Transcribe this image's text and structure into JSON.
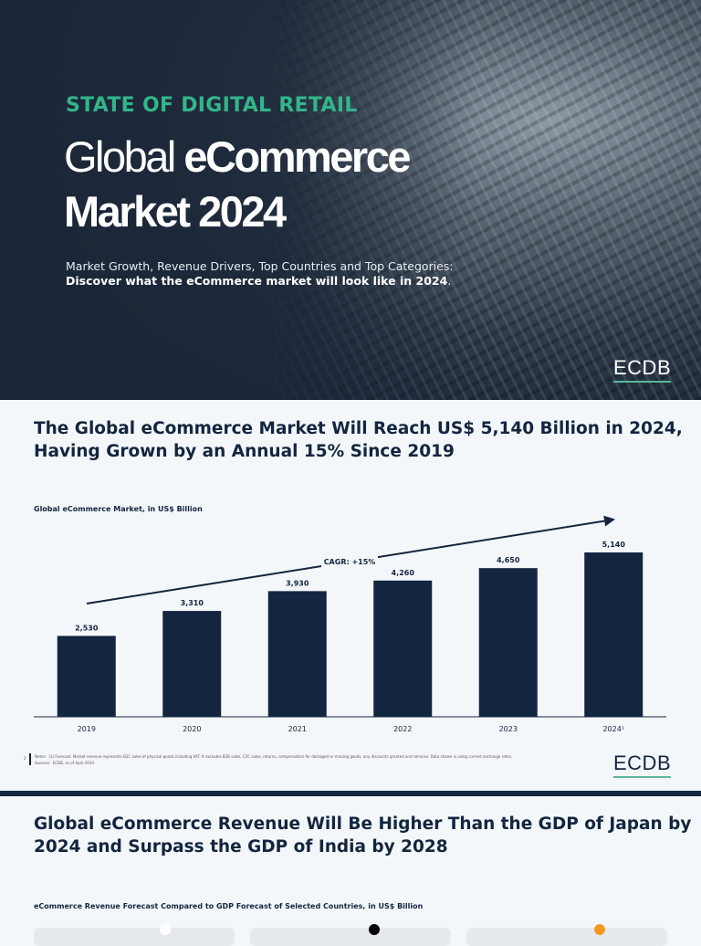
{
  "cover": {
    "kicker": "STATE OF DIGITAL RETAIL",
    "title_light": "Global ",
    "title_bold1": "eCommerce",
    "title_bold2": "Market 2024",
    "subtitle_line1": "Market Growth, Revenue Drivers, Top Countries and Top Categories:",
    "subtitle_line2": "Discover what the eCommerce market will look like in 2024",
    "subtitle_end": ".",
    "logo": "ECDB"
  },
  "page2": {
    "heading_line1": "The Global eCommerce Market Will Reach US$ 5,140 Billion in 2024,",
    "heading_line2": "Having Grown by an Annual 15% Since 2019",
    "page_number": "2",
    "notes_label": "Notes:",
    "notes_text": "(1) Forecast. Market revenue represents B2C sales of physical goods including VAT. It excludes B2B sales, C2C sales, returns, compensation for damaged or missing goods, any discounts granted and services. Data shown is using current exchange rates.",
    "sources_label": "Sources:",
    "sources_text": "ECDB, as of April 2024.",
    "logo": "ECDB"
  },
  "chart_data": {
    "type": "bar",
    "title": "Global eCommerce Market, in US$ Billion",
    "categories": [
      "2019",
      "2020",
      "2021",
      "2022",
      "2023",
      "2024¹"
    ],
    "values": [
      2530,
      3310,
      3930,
      4260,
      4650,
      5140
    ],
    "value_labels": [
      "2,530",
      "3,310",
      "3,930",
      "4,260",
      "4,650",
      "5,140"
    ],
    "annotation": "CAGR: +15%",
    "ylim": [
      0,
      5140
    ],
    "grid": false,
    "bar_color": "#13253f"
  },
  "page3": {
    "heading_line1": "Global eCommerce Revenue Will Be Higher Than the GDP of Japan by",
    "heading_line2": "2024 and Surpass the GDP of India by 2028",
    "chart_label": "eCommerce Revenue Forecast Compared to GDP Forecast of Selected Countries, in US$ Billion"
  },
  "colors": {
    "navy": "#13253f",
    "green": "#33b58a",
    "orange": "#f29a1f"
  }
}
